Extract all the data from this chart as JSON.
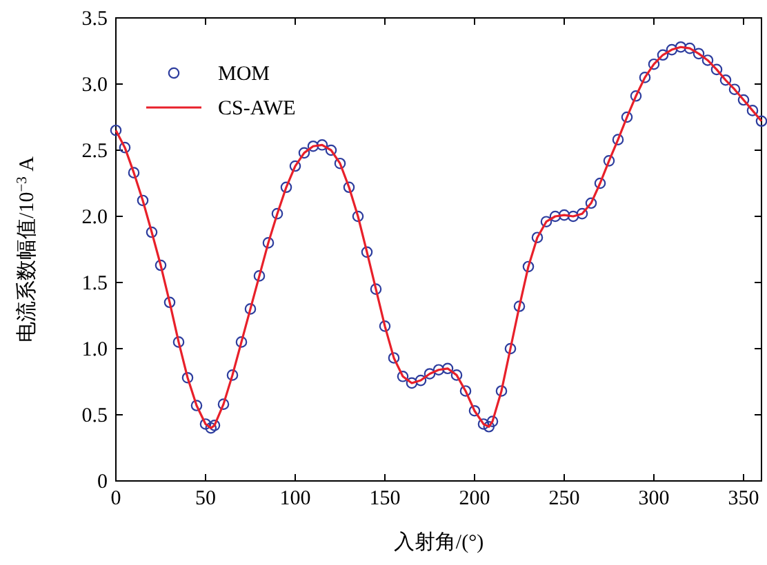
{
  "chart_data": {
    "type": "line",
    "xlabel": "入射角/(°)",
    "ylabel": "电流系数幅值/10$^{−3}$ A",
    "xlim": [
      0,
      360
    ],
    "ylim": [
      0,
      3.5
    ],
    "xticks": [
      0,
      50,
      100,
      150,
      200,
      250,
      300,
      350
    ],
    "yticks": [
      0,
      {
        "value": 0.5,
        "label": "0.5"
      },
      {
        "value": 1,
        "label": "1.0"
      },
      {
        "value": 1.5,
        "label": "1.5"
      },
      {
        "value": 2,
        "label": "2.0"
      },
      {
        "value": 2.5,
        "label": "2.5"
      },
      {
        "value": 3,
        "label": "3.0"
      },
      {
        "value": 3.5,
        "label": "3.5"
      }
    ],
    "x": [
      0,
      5,
      10,
      15,
      20,
      25,
      30,
      35,
      40,
      45,
      50,
      53,
      55,
      60,
      65,
      70,
      75,
      80,
      85,
      90,
      95,
      100,
      105,
      110,
      115,
      120,
      125,
      130,
      135,
      140,
      145,
      150,
      155,
      160,
      165,
      170,
      175,
      180,
      185,
      190,
      195,
      200,
      205,
      208,
      210,
      215,
      220,
      225,
      230,
      235,
      240,
      245,
      250,
      255,
      260,
      265,
      270,
      275,
      280,
      285,
      290,
      295,
      300,
      305,
      310,
      315,
      320,
      325,
      330,
      335,
      340,
      345,
      350,
      355,
      360
    ],
    "series": [
      {
        "name": "MOM",
        "type": "scatter",
        "marker": "circle",
        "color": "#2d3d9e",
        "values": [
          2.65,
          2.52,
          2.33,
          2.12,
          1.88,
          1.63,
          1.35,
          1.05,
          0.78,
          0.57,
          0.43,
          0.4,
          0.42,
          0.58,
          0.8,
          1.05,
          1.3,
          1.55,
          1.8,
          2.02,
          2.22,
          2.38,
          2.48,
          2.53,
          2.54,
          2.5,
          2.4,
          2.22,
          2.0,
          1.73,
          1.45,
          1.17,
          0.93,
          0.79,
          0.74,
          0.76,
          0.81,
          0.84,
          0.85,
          0.8,
          0.68,
          0.53,
          0.43,
          0.41,
          0.45,
          0.68,
          1.0,
          1.32,
          1.62,
          1.84,
          1.96,
          2.0,
          2.01,
          2.0,
          2.02,
          2.1,
          2.25,
          2.42,
          2.58,
          2.75,
          2.91,
          3.05,
          3.15,
          3.22,
          3.26,
          3.28,
          3.27,
          3.23,
          3.18,
          3.11,
          3.03,
          2.96,
          2.88,
          2.8,
          2.72
        ]
      },
      {
        "name": "CS-AWE",
        "type": "line",
        "line_style": "solid",
        "color": "#e8202a",
        "values": [
          2.65,
          2.52,
          2.33,
          2.12,
          1.88,
          1.63,
          1.35,
          1.05,
          0.78,
          0.57,
          0.43,
          0.4,
          0.42,
          0.58,
          0.8,
          1.05,
          1.3,
          1.55,
          1.8,
          2.02,
          2.22,
          2.38,
          2.48,
          2.53,
          2.54,
          2.5,
          2.4,
          2.22,
          2.0,
          1.73,
          1.45,
          1.17,
          0.93,
          0.79,
          0.74,
          0.76,
          0.81,
          0.84,
          0.85,
          0.8,
          0.68,
          0.53,
          0.43,
          0.41,
          0.45,
          0.68,
          1.0,
          1.32,
          1.62,
          1.84,
          1.96,
          2.0,
          2.01,
          2.0,
          2.02,
          2.1,
          2.25,
          2.42,
          2.58,
          2.75,
          2.91,
          3.05,
          3.15,
          3.22,
          3.26,
          3.28,
          3.27,
          3.23,
          3.18,
          3.11,
          3.03,
          2.96,
          2.88,
          2.8,
          2.72
        ]
      }
    ],
    "legend": "top left"
  }
}
